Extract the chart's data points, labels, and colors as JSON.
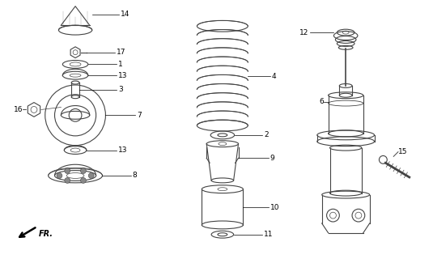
{
  "background_color": "#ffffff",
  "line_color": "#444444",
  "figsize": [
    5.35,
    3.2
  ],
  "dpi": 100
}
